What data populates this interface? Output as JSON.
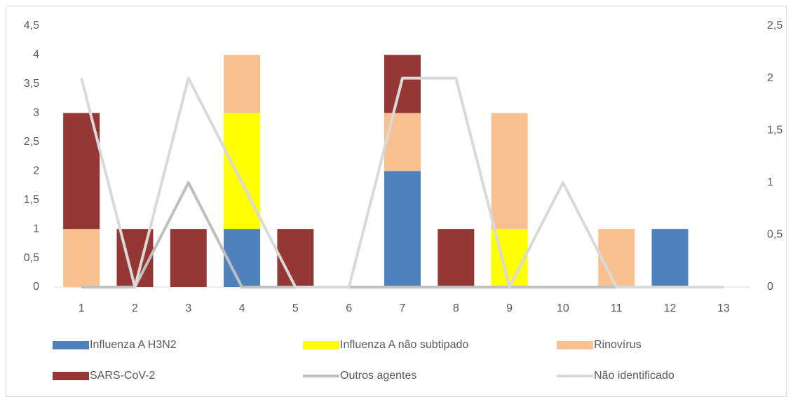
{
  "chart_data": {
    "type": "bar",
    "stacked": true,
    "categories": [
      1,
      2,
      3,
      4,
      5,
      6,
      7,
      8,
      9,
      10,
      11,
      12,
      13
    ],
    "series": [
      {
        "name": "Influenza A H3N2",
        "color": "#4e81bd",
        "type": "bar",
        "values": [
          0,
          0,
          0,
          1,
          0,
          0,
          2,
          0,
          0,
          0,
          0,
          1,
          0
        ]
      },
      {
        "name": "Influenza A não subtipado",
        "color": "#ffff00",
        "type": "bar",
        "values": [
          0,
          0,
          0,
          2,
          0,
          0,
          0,
          0,
          1,
          0,
          0,
          0,
          0
        ]
      },
      {
        "name": "Rinovírus",
        "color": "#f9c090",
        "type": "bar",
        "values": [
          1,
          0,
          0,
          1,
          0,
          0,
          1,
          0,
          2,
          0,
          1,
          0,
          0
        ]
      },
      {
        "name": "SARS-CoV-2",
        "color": "#953735",
        "type": "bar",
        "values": [
          2,
          1,
          1,
          0,
          1,
          0,
          1,
          1,
          0,
          0,
          0,
          0,
          0
        ]
      },
      {
        "name": "Outros agentes",
        "color": "#bfbfbf",
        "type": "line",
        "axis": "y2",
        "values": [
          0,
          0,
          1,
          0,
          0,
          0,
          0,
          0,
          0,
          0,
          0,
          0,
          0
        ]
      },
      {
        "name": "Não identificado",
        "color": "#d9d9d9",
        "type": "line",
        "axis": "y2",
        "values": [
          2,
          0,
          2,
          1,
          0,
          0,
          2,
          2,
          0,
          1,
          0,
          0,
          0
        ]
      }
    ],
    "ylim": [
      0,
      4.5
    ],
    "yticks": [
      0,
      {
        "value": 0.5,
        "label": "0,5"
      },
      1,
      {
        "value": 1.5,
        "label": "1,5"
      },
      2,
      {
        "value": 2.5,
        "label": "2,5"
      },
      3,
      {
        "value": 3.5,
        "label": "3,5"
      },
      4,
      {
        "value": 4.5,
        "label": "4,5"
      }
    ],
    "y2lim": [
      0,
      2.5
    ],
    "y2ticks": [
      0,
      {
        "value": 0.5,
        "label": "0,5"
      },
      1,
      {
        "value": 1.5,
        "label": "1,5"
      },
      2,
      {
        "value": 2.5,
        "label": "2,5"
      }
    ],
    "grid": false,
    "legend": "bottom"
  }
}
